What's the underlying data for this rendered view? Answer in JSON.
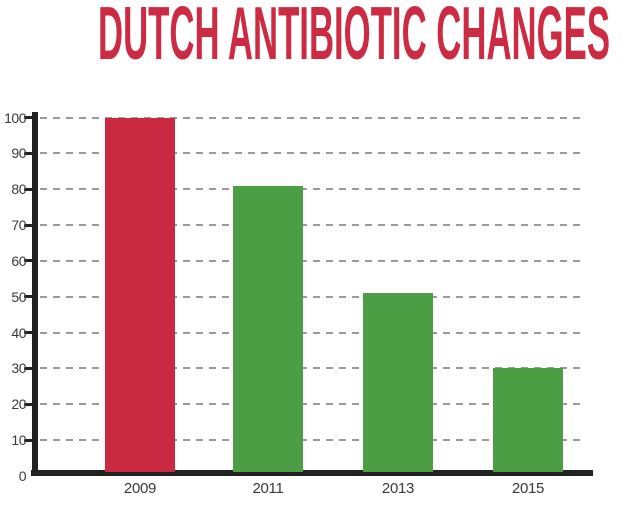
{
  "title": {
    "text": "DUTCH ANTIBIOTIC CHANGES",
    "color": "#cd2b44"
  },
  "chart_data": {
    "type": "bar",
    "title": "DUTCH ANTIBIOTIC CHANGES",
    "categories": [
      "2009",
      "2011",
      "2013",
      "2015"
    ],
    "values": [
      100,
      81,
      51,
      30
    ],
    "bar_colors": [
      "#c92a42",
      "#4c9e45",
      "#4c9e45",
      "#4c9e45"
    ],
    "xlabel": "",
    "ylabel": "",
    "ylim": [
      0,
      100
    ],
    "yticks": [
      0,
      10,
      20,
      30,
      40,
      50,
      60,
      70,
      80,
      90,
      100
    ],
    "grid": "horizontal-dashed",
    "legend_position": "none",
    "colors": {
      "red_bar": "#c92a42",
      "green_bar": "#4c9e45",
      "title_red": "#cd2b44",
      "axis": "#222222",
      "gridline": "#9a9a9a",
      "tick_label": "#3a3a3a"
    }
  }
}
